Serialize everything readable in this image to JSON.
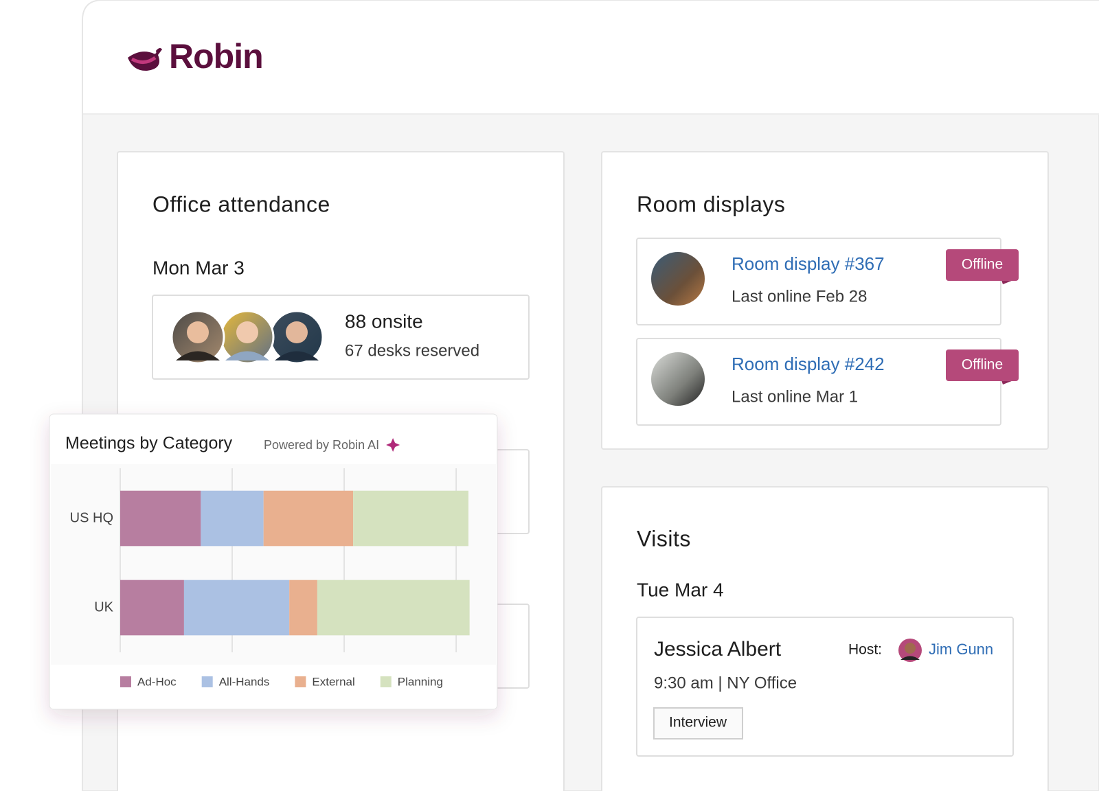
{
  "header": {
    "logo": "Robin"
  },
  "attendance": {
    "title": "Office attendance",
    "date": "Mon Mar 3",
    "onsite": "88 onsite",
    "desks": "67 desks reserved"
  },
  "room_displays": {
    "title": "Room displays",
    "items": [
      {
        "name": "Room display #367",
        "status": "Offline",
        "last_online": "Last online Feb 28"
      },
      {
        "name": "Room display #242",
        "status": "Offline",
        "last_online": "Last online Mar 1"
      }
    ]
  },
  "visits": {
    "title": "Visits",
    "date": "Tue Mar 4",
    "visitor": "Jessica Albert",
    "host_label": "Host:",
    "host": "Jim Gunn",
    "details": "9:30 am | NY Office",
    "tag": "Interview"
  },
  "chart_data": {
    "type": "bar",
    "orientation": "horizontal",
    "stacked": true,
    "title": "Meetings by Category",
    "subtitle": "Powered by Robin AI",
    "categories": [
      "US HQ",
      "UK"
    ],
    "series": [
      {
        "name": "Ad-Hoc",
        "color": "#b77ea0",
        "values": [
          7.2,
          5.7
        ]
      },
      {
        "name": "All-Hands",
        "color": "#abc1e3",
        "values": [
          5.6,
          9.4
        ]
      },
      {
        "name": "External",
        "color": "#e9b08f",
        "values": [
          8.0,
          2.5
        ]
      },
      {
        "name": "Planning",
        "color": "#d5e2bf",
        "values": [
          10.3,
          13.6
        ]
      }
    ],
    "xlim": [
      0,
      31.1
    ],
    "xticks": [
      0,
      10,
      20,
      30
    ],
    "grid": true
  }
}
